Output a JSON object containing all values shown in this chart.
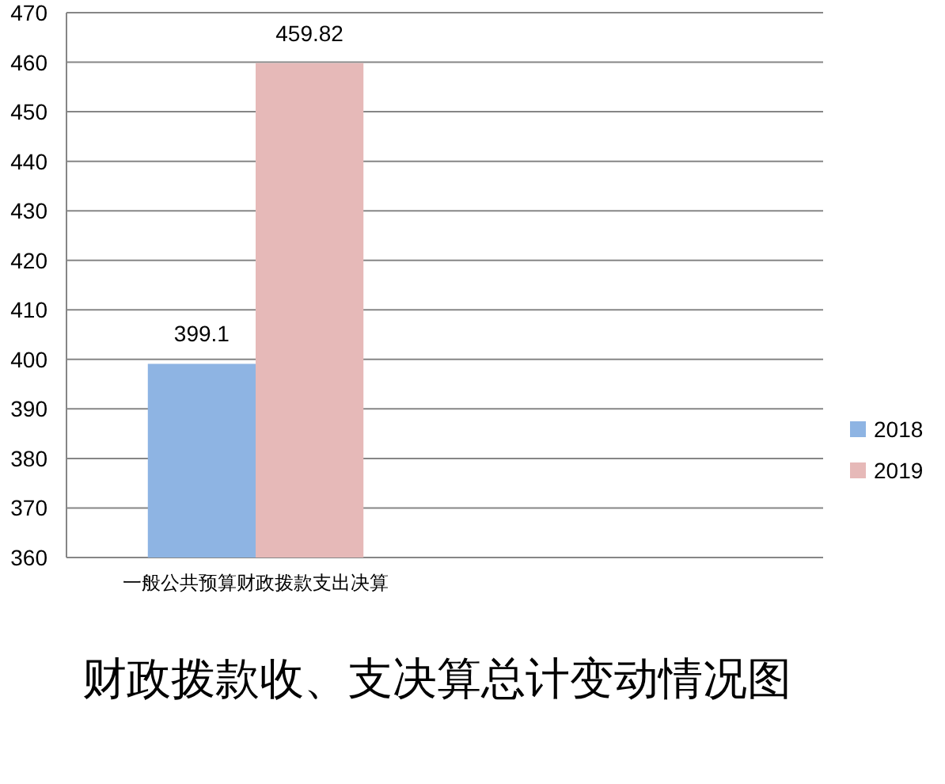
{
  "chart_data": {
    "type": "bar",
    "title": "财政拨款收、支决算总计变动情况图",
    "categories": [
      "一般公共预算财政拨款支出决算",
      null
    ],
    "series": [
      {
        "name": "2018",
        "color": "#8eb4e3",
        "values": [
          399.1,
          null
        ]
      },
      {
        "name": "2019",
        "color": "#e6b9b8",
        "values": [
          459.82,
          null
        ]
      }
    ],
    "ylim": [
      360,
      470
    ],
    "yticks": [
      360,
      370,
      380,
      390,
      400,
      410,
      420,
      430,
      440,
      450,
      460,
      470
    ],
    "grid": "y",
    "legend": "right",
    "data_labels": true
  }
}
